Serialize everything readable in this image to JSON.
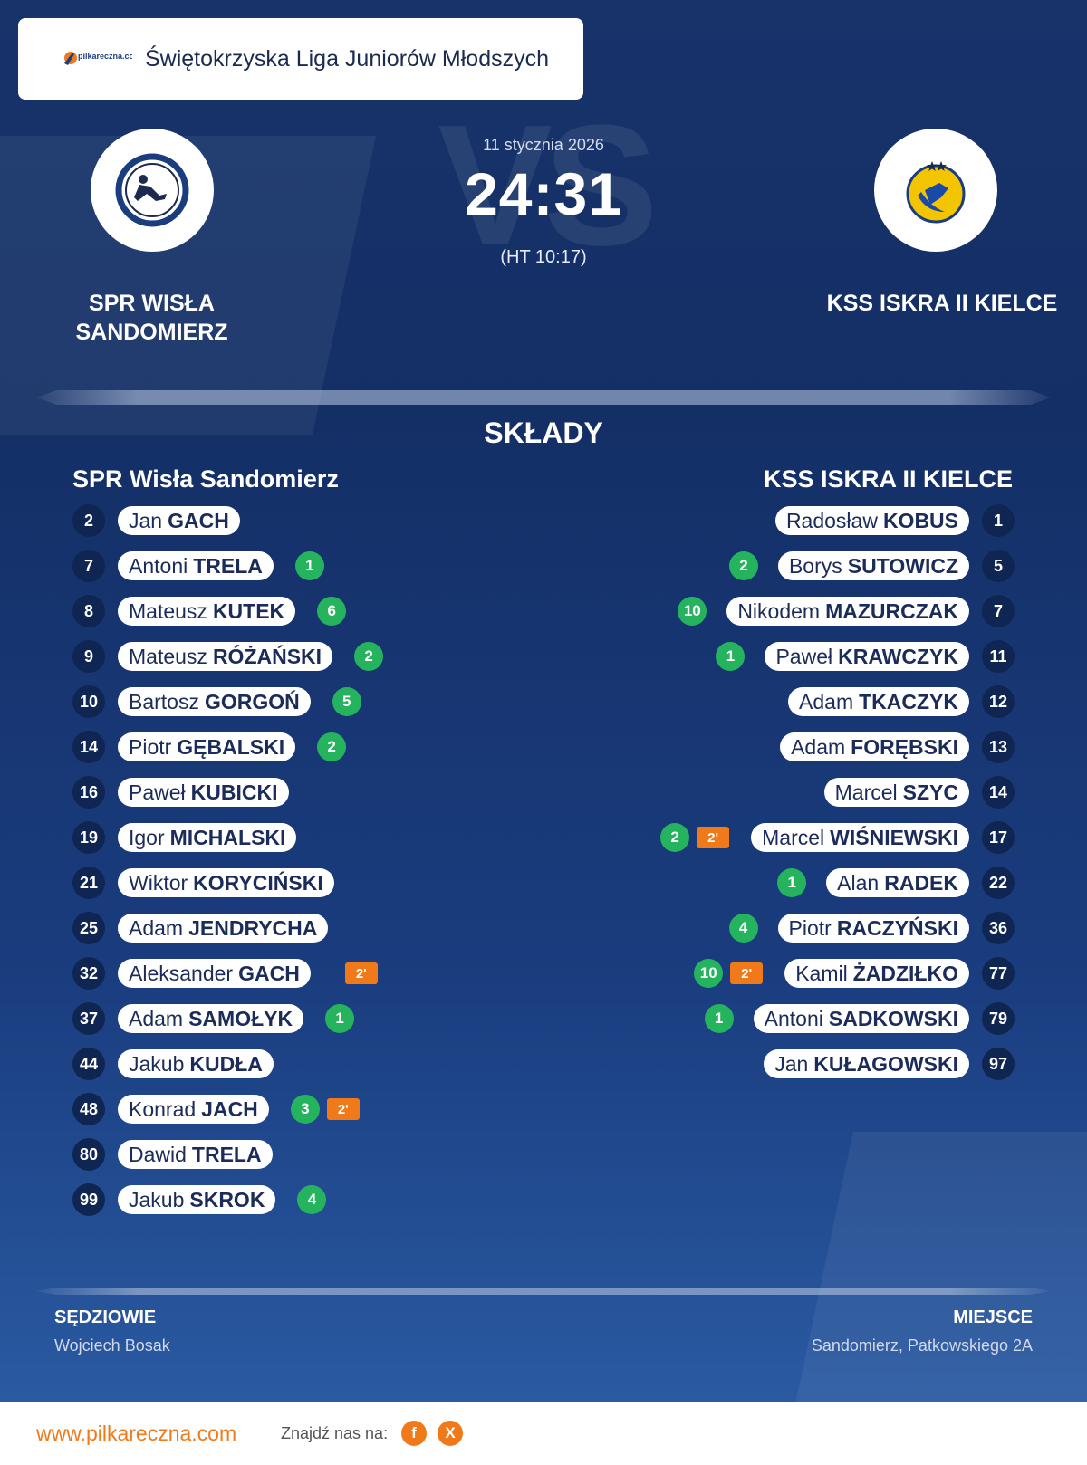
{
  "header": {
    "logo_text": "pilkareczna.com",
    "league": "Świętokrzyska Liga Juniorów Młodszych"
  },
  "match": {
    "date": "11 stycznia 2026",
    "score": "24:31",
    "halftime": "(HT 10:17)",
    "home_team": "SPR WISŁA SANDOMIERZ",
    "away_team": "KSS ISKRA II KIELCE"
  },
  "lineups": {
    "title": "SKŁADY",
    "home_title": "SPR Wisła Sandomierz",
    "away_title": "KSS ISKRA II KIELCE",
    "home": [
      {
        "number": "2",
        "first": "Jan",
        "last": "GACH",
        "goals": "",
        "penalty": ""
      },
      {
        "number": "7",
        "first": "Antoni",
        "last": "TRELA",
        "goals": "1",
        "penalty": ""
      },
      {
        "number": "8",
        "first": "Mateusz",
        "last": "KUTEK",
        "goals": "6",
        "penalty": ""
      },
      {
        "number": "9",
        "first": "Mateusz",
        "last": "RÓŻAŃSKI",
        "goals": "2",
        "penalty": ""
      },
      {
        "number": "10",
        "first": "Bartosz",
        "last": "GORGOŃ",
        "goals": "5",
        "penalty": ""
      },
      {
        "number": "14",
        "first": "Piotr",
        "last": "GĘBALSKI",
        "goals": "2",
        "penalty": ""
      },
      {
        "number": "16",
        "first": "Paweł",
        "last": "KUBICKI",
        "goals": "",
        "penalty": ""
      },
      {
        "number": "19",
        "first": "Igor",
        "last": "MICHALSKI",
        "goals": "",
        "penalty": ""
      },
      {
        "number": "21",
        "first": "Wiktor",
        "last": "KORYCIŃSKI",
        "goals": "",
        "penalty": ""
      },
      {
        "number": "25",
        "first": "Adam",
        "last": "JENDRYCHA",
        "goals": "",
        "penalty": ""
      },
      {
        "number": "32",
        "first": "Aleksander",
        "last": "GACH",
        "goals": "",
        "penalty": "2'"
      },
      {
        "number": "37",
        "first": "Adam",
        "last": "SAMOŁYK",
        "goals": "1",
        "penalty": ""
      },
      {
        "number": "44",
        "first": "Jakub",
        "last": "KUDŁA",
        "goals": "",
        "penalty": ""
      },
      {
        "number": "48",
        "first": "Konrad",
        "last": "JACH",
        "goals": "3",
        "penalty": "2'"
      },
      {
        "number": "80",
        "first": "Dawid",
        "last": "TRELA",
        "goals": "",
        "penalty": ""
      },
      {
        "number": "99",
        "first": "Jakub",
        "last": "SKROK",
        "goals": "4",
        "penalty": ""
      }
    ],
    "away": [
      {
        "number": "1",
        "first": "Radosław",
        "last": "KOBUS",
        "goals": "",
        "penalty": ""
      },
      {
        "number": "5",
        "first": "Borys",
        "last": "SUTOWICZ",
        "goals": "2",
        "penalty": ""
      },
      {
        "number": "7",
        "first": "Nikodem",
        "last": "MAZURCZAK",
        "goals": "10",
        "penalty": ""
      },
      {
        "number": "11",
        "first": "Paweł",
        "last": "KRAWCZYK",
        "goals": "1",
        "penalty": ""
      },
      {
        "number": "12",
        "first": "Adam",
        "last": "TKACZYK",
        "goals": "",
        "penalty": ""
      },
      {
        "number": "13",
        "first": "Adam",
        "last": "FORĘBSKI",
        "goals": "",
        "penalty": ""
      },
      {
        "number": "14",
        "first": "Marcel",
        "last": "SZYC",
        "goals": "",
        "penalty": ""
      },
      {
        "number": "17",
        "first": "Marcel",
        "last": "WIŚNIEWSKI",
        "goals": "2",
        "penalty": "2'"
      },
      {
        "number": "22",
        "first": "Alan",
        "last": "RADEK",
        "goals": "1",
        "penalty": ""
      },
      {
        "number": "36",
        "first": "Piotr",
        "last": "RACZYŃSKI",
        "goals": "4",
        "penalty": ""
      },
      {
        "number": "77",
        "first": "Kamil",
        "last": "ŻADZIŁKO",
        "goals": "10",
        "penalty": "2'"
      },
      {
        "number": "79",
        "first": "Antoni",
        "last": "SADKOWSKI",
        "goals": "1",
        "penalty": ""
      },
      {
        "number": "97",
        "first": "Jan",
        "last": "KUŁAGOWSKI",
        "goals": "",
        "penalty": ""
      }
    ]
  },
  "footer": {
    "referees_label": "SĘDZIOWIE",
    "referees": "Wojciech Bosak",
    "venue_label": "MIEJSCE",
    "venue": "Sandomierz, Patkowskiego 2A",
    "site": "www.pilkareczna.com",
    "find_us": "Znajdź nas na:",
    "social_fb": "f",
    "social_x": "X"
  },
  "colors": {
    "background": "#17336a",
    "goal_badge": "#26b35e",
    "penalty_badge": "#f07a1a",
    "number_badge": "#0f2552",
    "accent": "#f07a1a"
  },
  "icons": {
    "home_crest": "spr-wisla-crest-icon",
    "away_crest": "kss-iskra-crest-icon",
    "brand": "pilkareczna-logo-icon",
    "facebook": "facebook-icon",
    "x": "x-icon"
  }
}
